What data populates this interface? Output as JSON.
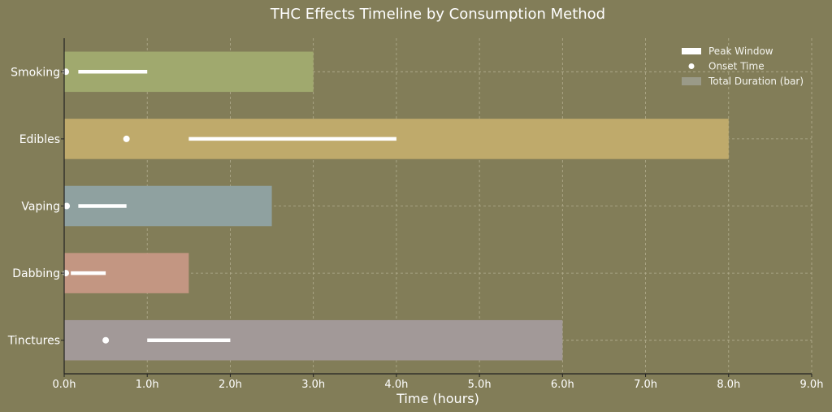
{
  "chart_data": {
    "type": "bar",
    "orientation": "horizontal",
    "title": "THC Effects Timeline by Consumption Method",
    "xlabel": "Time (hours)",
    "ylabel": "",
    "xlim": [
      0,
      9
    ],
    "x_ticks": [
      0,
      1,
      2,
      3,
      4,
      5,
      6,
      7,
      8,
      9
    ],
    "x_tick_labels": [
      "0.0h",
      "1.0h",
      "2.0h",
      "3.0h",
      "4.0h",
      "5.0h",
      "6.0h",
      "7.0h",
      "8.0h",
      "9.0h"
    ],
    "grid": true,
    "legend_position": "top-right",
    "categories": [
      "Smoking",
      "Edibles",
      "Vaping",
      "Dabbing",
      "Tinctures"
    ],
    "series": [
      {
        "name": "Total Duration (bar)",
        "values": [
          3.0,
          8.0,
          2.5,
          1.5,
          6.0
        ]
      },
      {
        "name": "Onset Time",
        "values": [
          0.02,
          0.75,
          0.03,
          0.02,
          0.5
        ]
      },
      {
        "name": "Peak Window",
        "ranges": [
          [
            0.17,
            1.0
          ],
          [
            1.5,
            4.0
          ],
          [
            0.17,
            0.75
          ],
          [
            0.08,
            0.5
          ],
          [
            1.0,
            2.0
          ]
        ]
      }
    ],
    "bar_colors": [
      "#a0a96e",
      "#bfaa6b",
      "#8fa1a0",
      "#c39682",
      "#a29998"
    ],
    "legend": [
      "Peak Window",
      "Onset Time",
      "Total Duration (bar)"
    ]
  }
}
